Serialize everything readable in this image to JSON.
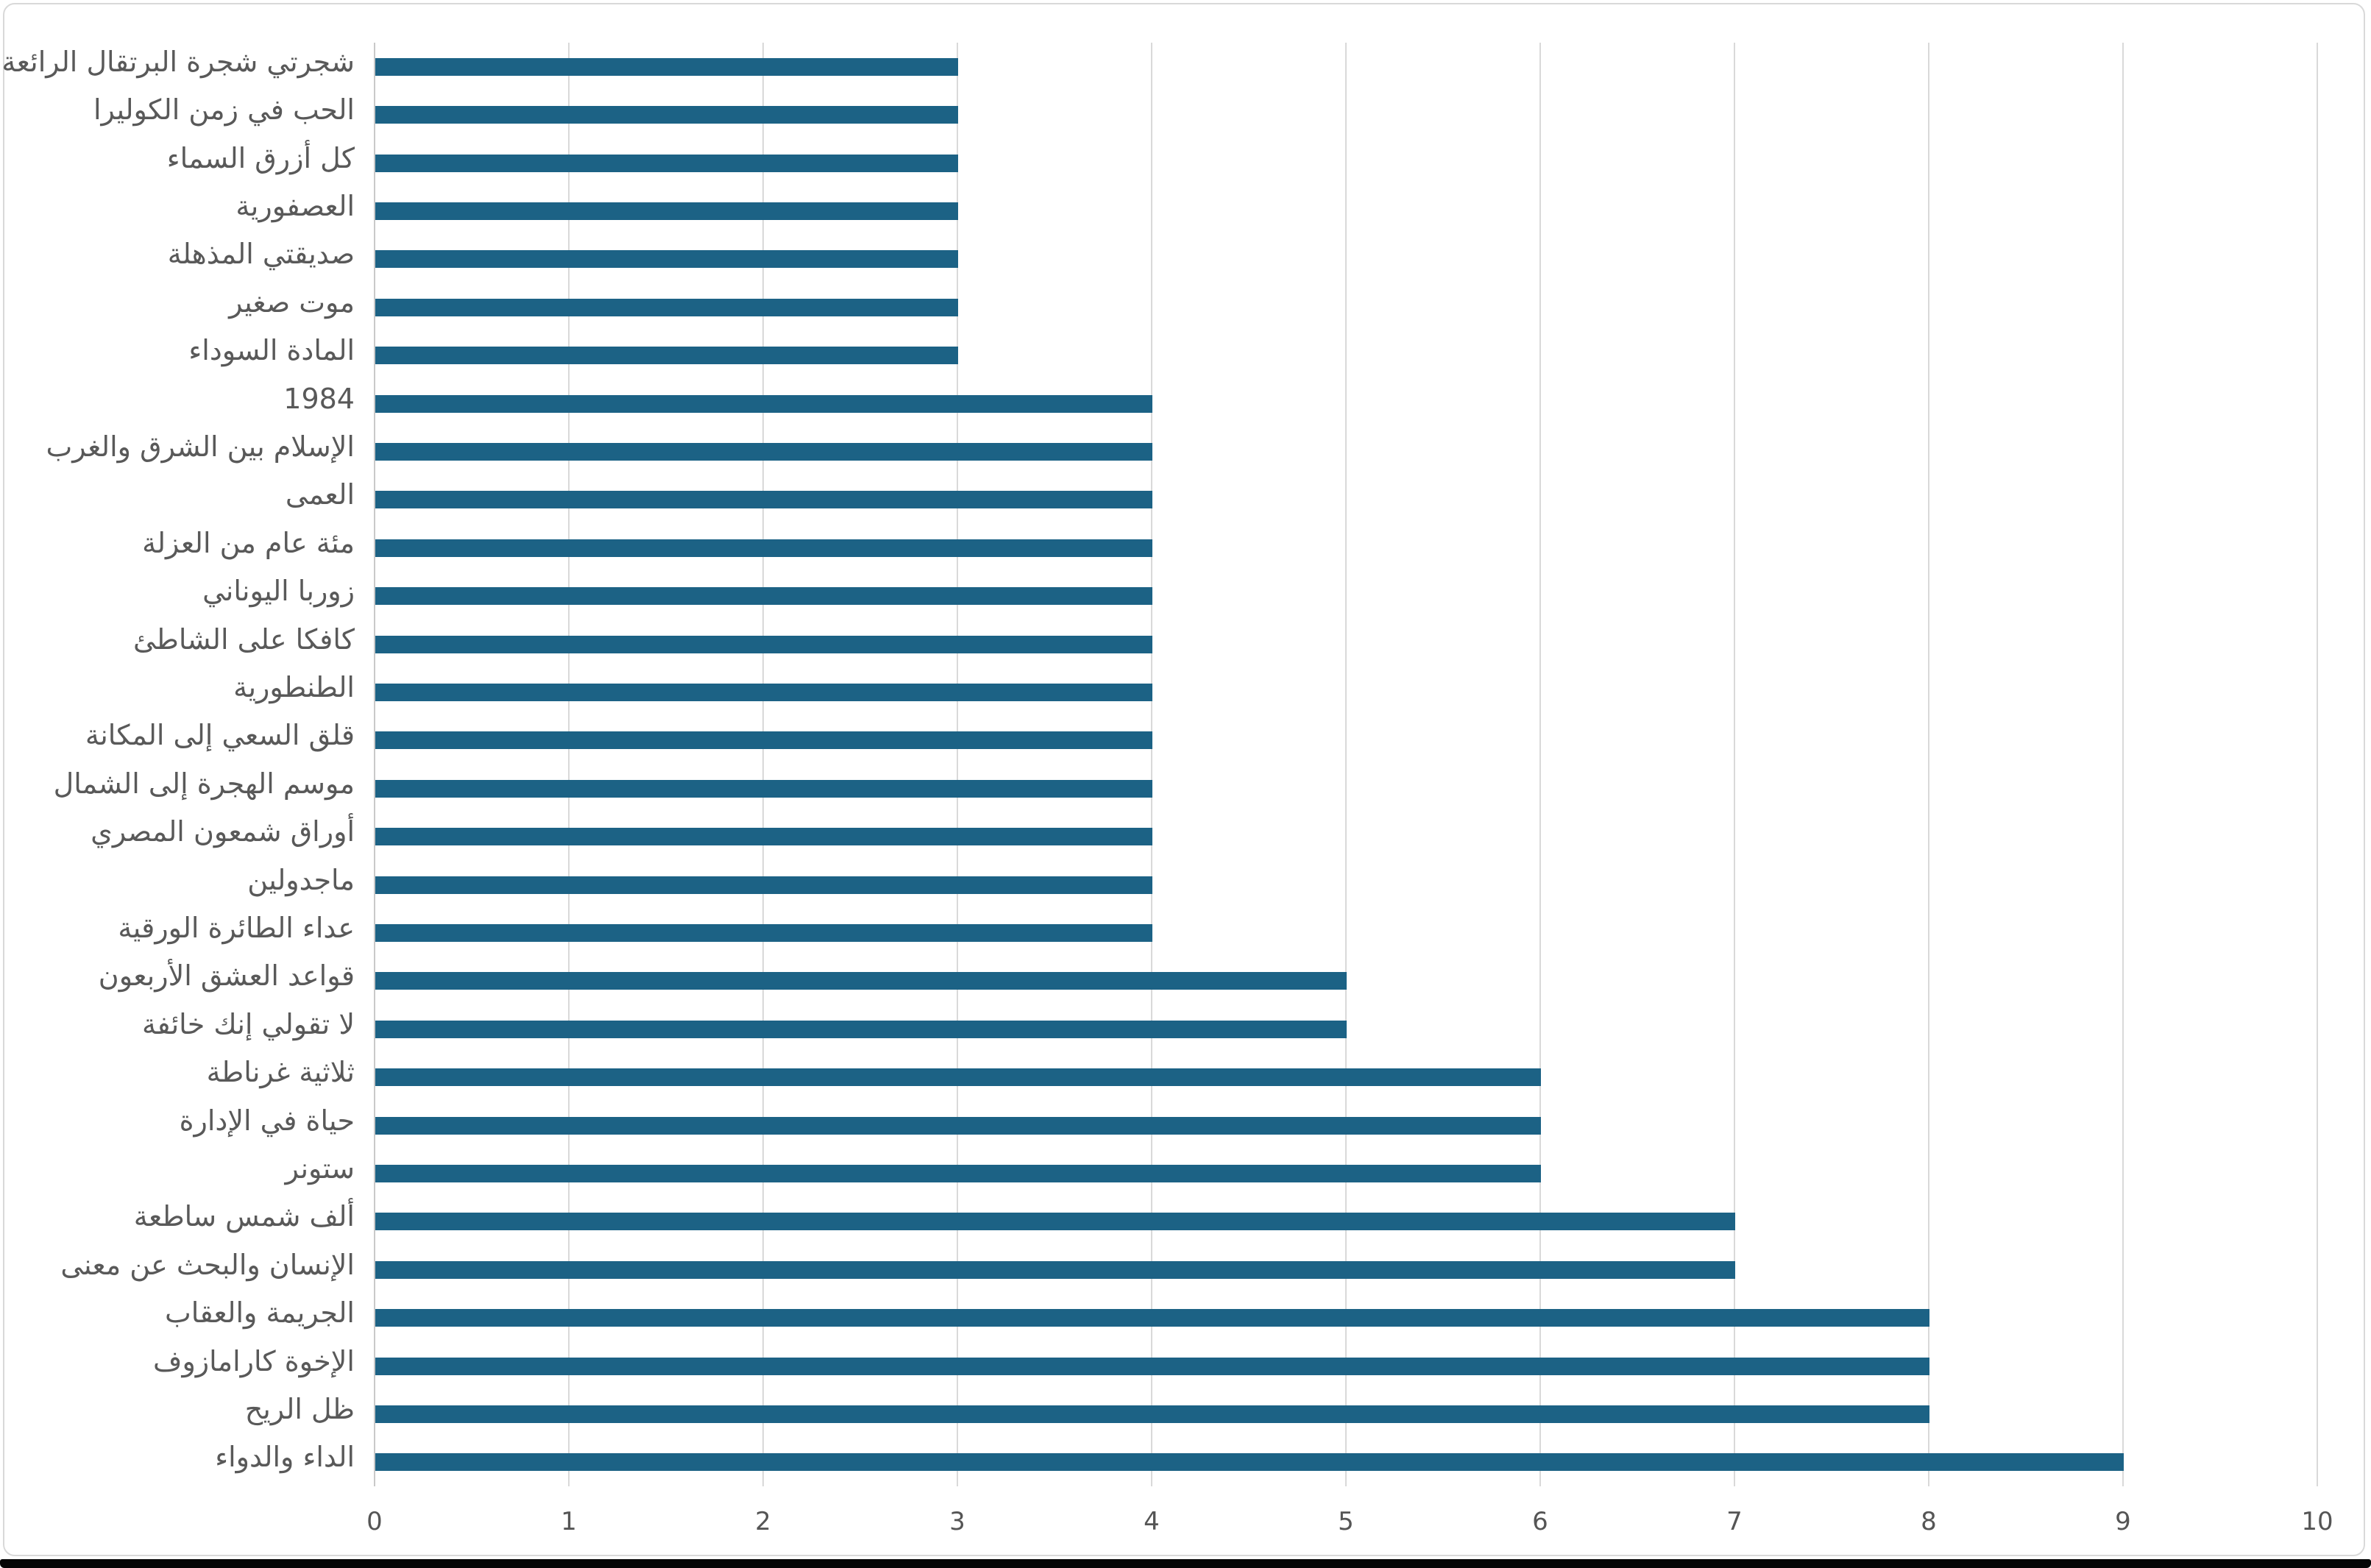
{
  "chart_data": {
    "type": "bar",
    "orientation": "horizontal",
    "title": "",
    "xlabel": "",
    "ylabel": "",
    "categories": [
      "شجرتي شجرة البرتقال الرائعة",
      "الحب في زمن الكوليرا",
      "كل أزرق السماء",
      "العصفورية",
      "صديقتي المذهلة",
      "موت صغير",
      "المادة السوداء",
      "1984",
      "الإسلام بين الشرق والغرب",
      "العمى",
      "مئة عام من العزلة",
      "زوربا اليوناني",
      "كافكا على الشاطئ",
      "الطنطورية",
      "قلق السعي إلى المكانة",
      "موسم الهجرة إلى الشمال",
      "أوراق شمعون المصري",
      "ماجدولين",
      "عداء الطائرة الورقية",
      "قواعد العشق الأربعون",
      "لا تقولي إنك خائفة",
      "ثلاثية غرناطة",
      "حياة في الإدارة",
      "ستونر",
      "ألف شمس ساطعة",
      "الإنسان والبحث عن معنى",
      "الجريمة والعقاب",
      "الإخوة كارامازوف",
      "ظل الريح",
      "الداء والدواء"
    ],
    "values": [
      3,
      3,
      3,
      3,
      3,
      3,
      3,
      4,
      4,
      4,
      4,
      4,
      4,
      4,
      4,
      4,
      4,
      4,
      4,
      5,
      5,
      6,
      6,
      6,
      7,
      7,
      8,
      8,
      8,
      9
    ],
    "xlim": [
      0,
      10
    ],
    "x_ticks": [
      0,
      1,
      2,
      3,
      4,
      5,
      6,
      7,
      8,
      9,
      10
    ],
    "grid": "vertical",
    "legend": "none",
    "colors": {
      "bar": "#1c6285",
      "gridline": "#d9d9d9",
      "axis_line": "#c9c9c9",
      "tick_text": "#555555",
      "label_text": "#595959",
      "background": "#ffffff",
      "panel_border": "#d9d9d9",
      "bottom_strip": "#050505"
    }
  }
}
